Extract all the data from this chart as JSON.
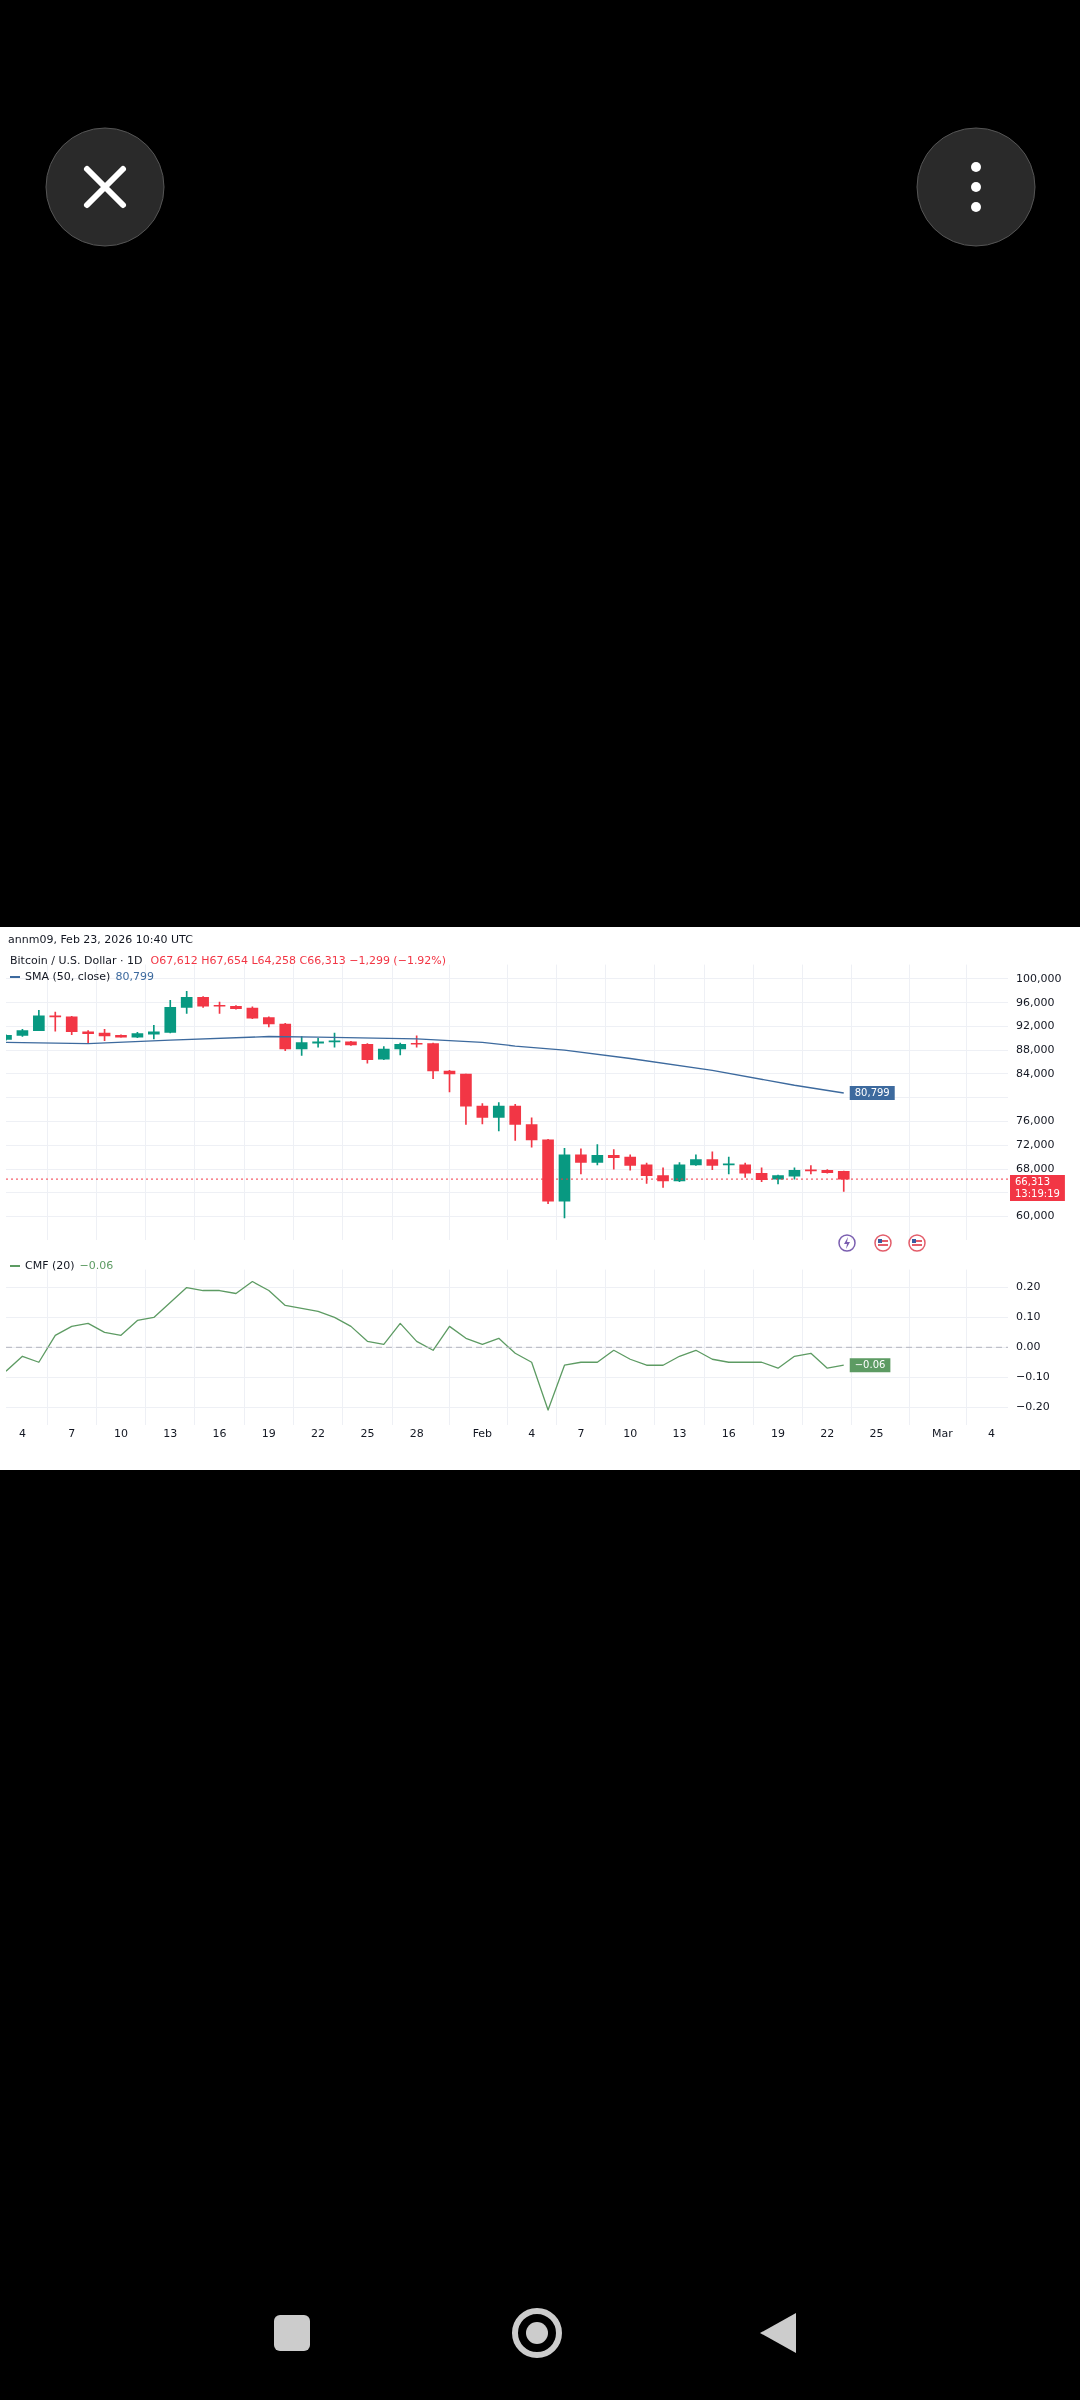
{
  "chart_data": [
    {
      "type": "candlestick",
      "title": "Bitcoin / U.S. Dollar · 1D",
      "subtitle": "O67,612 H67,654 L64,258 C66,313 −1,299 (−1.92%)",
      "annotations": [
        "annm09, Feb 23, 2026 10:40 UTC",
        "13:19:19"
      ],
      "x": [
        "2026-01-03",
        "2026-01-04",
        "2026-01-05",
        "2026-01-06",
        "2026-01-07",
        "2026-01-08",
        "2026-01-09",
        "2026-01-10",
        "2026-01-11",
        "2026-01-12",
        "2026-01-13",
        "2026-01-14",
        "2026-01-15",
        "2026-01-16",
        "2026-01-17",
        "2026-01-18",
        "2026-01-19",
        "2026-01-20",
        "2026-01-21",
        "2026-01-22",
        "2026-01-23",
        "2026-01-24",
        "2026-01-25",
        "2026-01-26",
        "2026-01-27",
        "2026-01-28",
        "2026-01-29",
        "2026-01-30",
        "2026-01-31",
        "2026-02-01",
        "2026-02-02",
        "2026-02-03",
        "2026-02-04",
        "2026-02-05",
        "2026-02-06",
        "2026-02-07",
        "2026-02-08",
        "2026-02-09",
        "2026-02-10",
        "2026-02-11",
        "2026-02-12",
        "2026-02-13",
        "2026-02-14",
        "2026-02-15",
        "2026-02-16",
        "2026-02-17",
        "2026-02-18",
        "2026-02-19",
        "2026-02-20",
        "2026-02-21",
        "2026-02-22",
        "2026-02-23"
      ],
      "ohlc": [
        [
          89800,
          90600,
          89700,
          90500
        ],
        [
          90500,
          91500,
          90300,
          91300
        ],
        [
          91300,
          94700,
          91300,
          93800
        ],
        [
          93800,
          94400,
          91200,
          93600
        ],
        [
          93600,
          93700,
          90600,
          91100
        ],
        [
          91100,
          91300,
          89100,
          90800
        ],
        [
          90900,
          91500,
          89600,
          90400
        ],
        [
          90500,
          90600,
          90200,
          90200
        ],
        [
          90200,
          91000,
          90100,
          90800
        ],
        [
          90700,
          92200,
          89900,
          91100
        ],
        [
          91000,
          96400,
          90900,
          95200
        ],
        [
          95200,
          97900,
          94200,
          96900
        ],
        [
          96900,
          97000,
          95200,
          95400
        ],
        [
          95500,
          96100,
          94200,
          95400
        ],
        [
          95400,
          95500,
          94900,
          95000
        ],
        [
          95100,
          95300,
          93300,
          93400
        ],
        [
          93500,
          93600,
          91900,
          92400
        ],
        [
          92400,
          92500,
          87900,
          88200
        ],
        [
          88200,
          90300,
          87100,
          89300
        ],
        [
          89200,
          90000,
          88500,
          89400
        ],
        [
          89400,
          90900,
          88500,
          89500
        ],
        [
          89400,
          89500,
          88800,
          88900
        ],
        [
          89000,
          89100,
          85800,
          86400
        ],
        [
          86500,
          88600,
          86400,
          88200
        ],
        [
          88200,
          89200,
          87200,
          89000
        ],
        [
          89100,
          90400,
          88500,
          89000
        ],
        [
          89100,
          89200,
          83200,
          84500
        ],
        [
          84500,
          84600,
          81000,
          84000
        ],
        [
          84000,
          84000,
          75500,
          78600
        ],
        [
          78600,
          79000,
          75600,
          76700
        ],
        [
          76700,
          79200,
          74400,
          78600
        ],
        [
          78600,
          78900,
          72800,
          75500
        ],
        [
          75500,
          76600,
          71700,
          72900
        ],
        [
          72900,
          73000,
          62200,
          62600
        ],
        [
          62600,
          71500,
          59800,
          70400
        ],
        [
          70400,
          71400,
          67200,
          69100
        ],
        [
          69100,
          72100,
          68700,
          70300
        ],
        [
          70300,
          71300,
          68000,
          69900
        ],
        [
          70000,
          70400,
          67800,
          68600
        ],
        [
          68700,
          69000,
          65600,
          66900
        ],
        [
          66900,
          68200,
          64900,
          66000
        ],
        [
          66000,
          69100,
          65900,
          68700
        ],
        [
          68700,
          70400,
          68600,
          69600
        ],
        [
          69600,
          70900,
          67900,
          68600
        ],
        [
          68700,
          70000,
          67200,
          68800
        ],
        [
          68700,
          69000,
          66600,
          67300
        ],
        [
          67300,
          68200,
          65900,
          66200
        ],
        [
          66300,
          67000,
          65500,
          66900
        ],
        [
          66800,
          68200,
          66300,
          67800
        ],
        [
          67800,
          68600,
          67200,
          67700
        ],
        [
          67800,
          67900,
          67300,
          67400
        ],
        [
          67612,
          67654,
          64258,
          66313
        ]
      ],
      "colors": [
        "#089981",
        "#089981",
        "#089981",
        "#f23645",
        "#f23645",
        "#f23645",
        "#f23645",
        "#f23645",
        "#089981",
        "#089981",
        "#089981",
        "#089981",
        "#f23645",
        "#f23645",
        "#f23645",
        "#f23645",
        "#f23645",
        "#f23645",
        "#089981",
        "#089981",
        "#089981",
        "#f23645",
        "#f23645",
        "#089981",
        "#089981",
        "#f23645",
        "#f23645",
        "#f23645",
        "#f23645",
        "#f23645",
        "#089981",
        "#f23645",
        "#f23645",
        "#f23645",
        "#089981",
        "#f23645",
        "#089981",
        "#f23645",
        "#f23645",
        "#f23645",
        "#f23645",
        "#089981",
        "#089981",
        "#f23645",
        "#089981",
        "#f23645",
        "#f23645",
        "#089981",
        "#089981",
        "#f23645",
        "#f23645",
        "#f23645"
      ],
      "series": [
        {
          "name": "SMA (50, close)",
          "type": "line",
          "color": "#3d6a9e",
          "x": [
            "2026-01-03",
            "2026-01-08",
            "2026-01-13",
            "2026-01-19",
            "2026-01-22",
            "2026-01-28",
            "2026-02-01",
            "2026-02-03",
            "2026-02-06",
            "2026-02-10",
            "2026-02-15",
            "2026-02-20",
            "2026-02-23"
          ],
          "values": [
            89300,
            89100,
            89700,
            90300,
            90200,
            89900,
            89300,
            88700,
            88000,
            86600,
            84600,
            82100,
            80799
          ],
          "value_labels": [
            null,
            null,
            null,
            null,
            null,
            null,
            null,
            null,
            null,
            null,
            null,
            null,
            "80,799"
          ]
        }
      ],
      "xlim": [
        "2026-01-03",
        "2026-03-05"
      ],
      "xticks": [
        {
          "value": "2026-01-04",
          "label": null
        },
        {
          "value": "2026-01-07",
          "label": null
        },
        {
          "value": "2026-01-10",
          "label": null
        },
        {
          "value": "2026-01-13",
          "label": null
        },
        {
          "value": "2026-01-16",
          "label": null
        },
        {
          "value": "2026-01-19",
          "label": null
        },
        {
          "value": "2026-01-22",
          "label": null
        },
        {
          "value": "2026-01-25",
          "label": null
        },
        {
          "value": "2026-01-28",
          "label": null
        },
        {
          "value": "2026-02-01",
          "label": null
        },
        {
          "value": "2026-02-04",
          "label": null
        },
        {
          "value": "2026-02-07",
          "label": null
        },
        {
          "value": "2026-02-10",
          "label": null
        },
        {
          "value": "2026-02-13",
          "label": null
        },
        {
          "value": "2026-02-16",
          "label": null
        },
        {
          "value": "2026-02-19",
          "label": null
        },
        {
          "value": "2026-02-22",
          "label": null
        },
        {
          "value": "2026-02-25",
          "label": null
        },
        {
          "value": "2026-03-01",
          "label": null
        },
        {
          "value": "2026-03-04",
          "label": null
        }
      ],
      "ylim": [
        56000,
        102400
      ],
      "yticks": [
        {
          "value": 60000,
          "label": "60,000"
        },
        {
          "value": 64000,
          "label": null
        },
        {
          "value": 68000,
          "label": "68,000"
        },
        {
          "value": 72000,
          "label": "72,000"
        },
        {
          "value": 76000,
          "label": "76,000"
        },
        {
          "value": 80000,
          "label": null
        },
        {
          "value": 84000,
          "label": "84,000"
        },
        {
          "value": 88000,
          "label": "88,000"
        },
        {
          "value": 92000,
          "label": "92,000"
        },
        {
          "value": 96000,
          "label": "96,000"
        },
        {
          "value": 100000,
          "label": "100,000"
        }
      ],
      "ref_lines": [
        {
          "axis": "y",
          "value": 66313,
          "label": "66,313",
          "color": "#f23645",
          "line_style": "dotted"
        }
      ],
      "grid": true,
      "legend": "top left",
      "tick_labels": "y"
    },
    {
      "type": "line",
      "series": [
        {
          "name": "CMF (20)",
          "color": "#5d9b63",
          "values": [
            -0.08,
            -0.03,
            -0.05,
            0.04,
            0.07,
            0.08,
            0.05,
            0.04,
            0.09,
            0.1,
            0.15,
            0.2,
            0.19,
            0.19,
            0.18,
            0.22,
            0.19,
            0.14,
            0.13,
            0.12,
            0.1,
            0.07,
            0.02,
            0.01,
            0.08,
            0.02,
            -0.01,
            0.07,
            0.03,
            0.01,
            0.03,
            -0.02,
            -0.05,
            -0.21,
            -0.06,
            -0.05,
            -0.05,
            -0.01,
            -0.04,
            -0.06,
            -0.06,
            -0.03,
            -0.01,
            -0.04,
            -0.05,
            -0.05,
            -0.05,
            -0.07,
            -0.03,
            -0.02,
            -0.07,
            -0.06
          ],
          "value_labels": [
            null,
            null,
            null,
            null,
            null,
            null,
            null,
            null,
            null,
            null,
            null,
            null,
            null,
            null,
            null,
            null,
            null,
            null,
            null,
            null,
            null,
            null,
            null,
            null,
            null,
            null,
            null,
            null,
            null,
            null,
            null,
            null,
            null,
            null,
            null,
            null,
            null,
            null,
            null,
            null,
            null,
            null,
            null,
            null,
            null,
            null,
            null,
            null,
            null,
            null,
            null,
            "−0.06"
          ]
        }
      ],
      "x": [
        "2026-01-03",
        "2026-01-04",
        "2026-01-05",
        "2026-01-06",
        "2026-01-07",
        "2026-01-08",
        "2026-01-09",
        "2026-01-10",
        "2026-01-11",
        "2026-01-12",
        "2026-01-13",
        "2026-01-14",
        "2026-01-15",
        "2026-01-16",
        "2026-01-17",
        "2026-01-18",
        "2026-01-19",
        "2026-01-20",
        "2026-01-21",
        "2026-01-22",
        "2026-01-23",
        "2026-01-24",
        "2026-01-25",
        "2026-01-26",
        "2026-01-27",
        "2026-01-28",
        "2026-01-29",
        "2026-01-30",
        "2026-01-31",
        "2026-02-01",
        "2026-02-02",
        "2026-02-03",
        "2026-02-04",
        "2026-02-05",
        "2026-02-06",
        "2026-02-07",
        "2026-02-08",
        "2026-02-09",
        "2026-02-10",
        "2026-02-11",
        "2026-02-12",
        "2026-02-13",
        "2026-02-14",
        "2026-02-15",
        "2026-02-16",
        "2026-02-17",
        "2026-02-18",
        "2026-02-19",
        "2026-02-20",
        "2026-02-21",
        "2026-02-22",
        "2026-02-23"
      ],
      "xlim": [
        "2026-01-03",
        "2026-03-05"
      ],
      "xticks": [
        {
          "value": "2026-01-04",
          "label": "4"
        },
        {
          "value": "2026-01-07",
          "label": "7"
        },
        {
          "value": "2026-01-10",
          "label": "10"
        },
        {
          "value": "2026-01-13",
          "label": "13"
        },
        {
          "value": "2026-01-16",
          "label": "16"
        },
        {
          "value": "2026-01-19",
          "label": "19"
        },
        {
          "value": "2026-01-22",
          "label": "22"
        },
        {
          "value": "2026-01-25",
          "label": "25"
        },
        {
          "value": "2026-01-28",
          "label": "28"
        },
        {
          "value": "2026-02-01",
          "label": "Feb"
        },
        {
          "value": "2026-02-04",
          "label": "4"
        },
        {
          "value": "2026-02-07",
          "label": "7"
        },
        {
          "value": "2026-02-10",
          "label": "10"
        },
        {
          "value": "2026-02-13",
          "label": "13"
        },
        {
          "value": "2026-02-16",
          "label": "16"
        },
        {
          "value": "2026-02-19",
          "label": "19"
        },
        {
          "value": "2026-02-22",
          "label": "22"
        },
        {
          "value": "2026-02-25",
          "label": "25"
        },
        {
          "value": "2026-03-01",
          "label": "Mar"
        },
        {
          "value": "2026-03-04",
          "label": "4"
        }
      ],
      "ylim": [
        -0.26,
        0.26
      ],
      "yticks": [
        {
          "value": -0.2,
          "label": "−0.20"
        },
        {
          "value": -0.1,
          "label": "−0.10"
        },
        {
          "value": 0,
          "label": "0.00"
        },
        {
          "value": 0.1,
          "label": "0.10"
        },
        {
          "value": 0.2,
          "label": "0.20"
        }
      ],
      "ref_lines": [
        {
          "axis": "y",
          "value": 0,
          "color": "#b2b5be",
          "line_style": "dashed"
        }
      ],
      "grid": true,
      "legend": "top left"
    }
  ]
}
